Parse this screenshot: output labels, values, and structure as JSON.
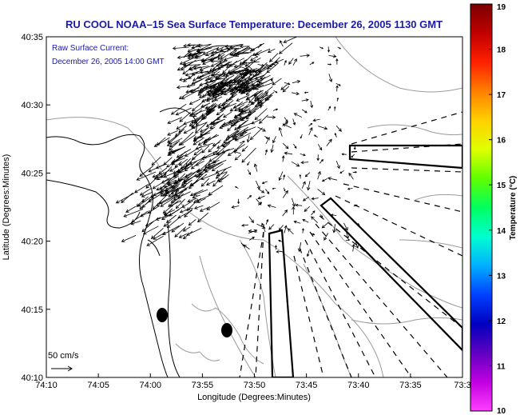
{
  "header": {
    "title": "RU COOL   NOAA–15  Sea Surface Temperature:  December 26, 2005 1130 GMT"
  },
  "legend": {
    "line1": "Raw Surface Current:",
    "line2": "December 26, 2005 14:00 GMT",
    "scale_label": "50 cm/s"
  },
  "axes": {
    "x_label": "Longitude (Degrees:Minutes)",
    "y_label": "Latitude (Degrees:Minutes)",
    "x_ticks": [
      "74:10",
      "74:05",
      "74:00",
      "73:55",
      "73:50",
      "73:45",
      "73:40",
      "73:35",
      "73:3"
    ],
    "y_ticks": [
      "40:35",
      "40:30",
      "40:25",
      "40:20",
      "40:15",
      "40:10"
    ]
  },
  "colorbar": {
    "label": "Temperature (°C)",
    "ticks": [
      "19",
      "18",
      "17",
      "16",
      "15",
      "14",
      "13",
      "12",
      "11",
      "10"
    ],
    "stops": [
      "#7a0000",
      "#c00000",
      "#ff2000",
      "#ff8000",
      "#ffd000",
      "#e0ff00",
      "#60ff00",
      "#00ff60",
      "#00ffd0",
      "#00b0ff",
      "#0040ff",
      "#0000c0",
      "#6000c0",
      "#c000e0",
      "#ff40ff"
    ]
  },
  "colors": {
    "title": "#1a1aa8",
    "coast": "#000000",
    "bathymetry": "#9a9a9a"
  }
}
